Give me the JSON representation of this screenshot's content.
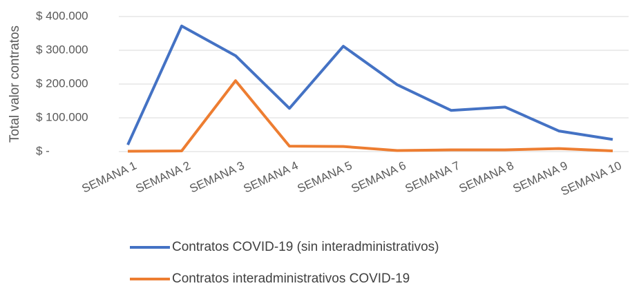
{
  "chart_data": {
    "type": "line",
    "y_label": "Total valor contratos",
    "categories": [
      "SEMANA 1",
      "SEMANA 2",
      "SEMANA 3",
      "SEMANA 4",
      "SEMANA 5",
      "SEMANA 6",
      "SEMANA 7",
      "SEMANA 8",
      "SEMANA 9",
      "SEMANA 10"
    ],
    "series": [
      {
        "name": "Contratos COVID-19 (sin interadministrativos)",
        "color": "#4472c4",
        "values": [
          20000,
          372000,
          284000,
          128000,
          312000,
          198000,
          122000,
          132000,
          61000,
          36000
        ]
      },
      {
        "name": "Contratos interadministrativos COVID-19",
        "color": "#ed7d31",
        "values": [
          1000,
          2000,
          210000,
          16000,
          15000,
          3000,
          5000,
          5000,
          9000,
          2000
        ]
      }
    ],
    "ylim": [
      0,
      400000
    ],
    "yticks": [
      {
        "value": 0,
        "label": "$ -"
      },
      {
        "value": 100000,
        "label": "$ 100.000"
      },
      {
        "value": 200000,
        "label": "$ 200.000"
      },
      {
        "value": 300000,
        "label": "$ 300.000"
      },
      {
        "value": 400000,
        "label": "$ 400.000"
      }
    ],
    "grid": true,
    "legend": "bottom"
  }
}
